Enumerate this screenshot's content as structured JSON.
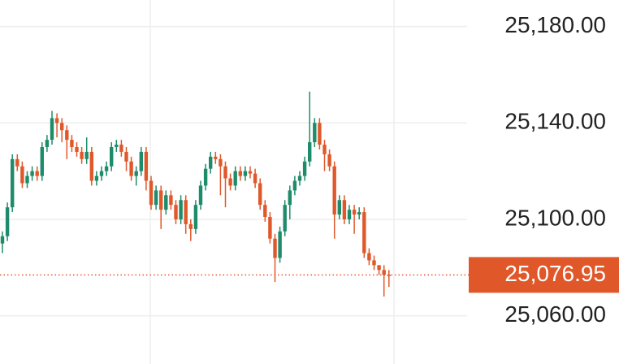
{
  "chart_data": {
    "type": "candlestick",
    "open": [
      25090,
      25093,
      25105,
      25125,
      25122,
      25115,
      25118,
      25120,
      25118,
      25130,
      25133,
      25142,
      25140,
      25137,
      25133,
      25130,
      25128,
      25125,
      25128,
      25116,
      25118,
      25120,
      25122,
      25130,
      25131,
      25128,
      25124,
      25118,
      25120,
      25128,
      25116,
      25106,
      25112,
      25104,
      25110,
      25106,
      25100,
      25108,
      25098,
      25096,
      25106,
      25114,
      25121,
      25126,
      25125,
      25122,
      25117,
      25114,
      25120,
      25118,
      25120,
      25119,
      25115,
      25106,
      25101,
      25092,
      25084,
      25095,
      25106,
      25112,
      25116,
      25118,
      25124,
      25132,
      25140,
      25131,
      25127,
      25122,
      25102,
      25108,
      25100,
      25104,
      25102,
      25103,
      25086,
      25083,
      25081,
      25079,
      25077
    ],
    "high": [
      25095,
      25107,
      25127,
      25127,
      25124,
      25120,
      25122,
      25122,
      25132,
      25135,
      25145,
      25144,
      25142,
      25139,
      25135,
      25132,
      25130,
      25134,
      25130,
      25120,
      25122,
      25124,
      25132,
      25133,
      25133,
      25130,
      25126,
      25122,
      25130,
      25130,
      25118,
      25114,
      25114,
      25112,
      25112,
      25108,
      25110,
      25110,
      25100,
      25108,
      25116,
      25123,
      25128,
      25128,
      25127,
      25124,
      25119,
      25122,
      25122,
      25122,
      25122,
      25121,
      25117,
      25108,
      25103,
      25094,
      25097,
      25108,
      25114,
      25118,
      25120,
      25126,
      25153,
      25142,
      25142,
      25133,
      25129,
      25124,
      25110,
      25110,
      25106,
      25106,
      25105,
      25105,
      25088,
      25085,
      25081,
      25081,
      25079
    ],
    "low": [
      25086,
      25091,
      25103,
      25120,
      25113,
      25113,
      25116,
      25116,
      25116,
      25128,
      25131,
      25134,
      25132,
      25125,
      25128,
      25126,
      25123,
      25123,
      25114,
      25114,
      25116,
      25118,
      25120,
      25128,
      25126,
      25120,
      25116,
      25114,
      25118,
      25112,
      25104,
      25104,
      25096,
      25102,
      25104,
      25098,
      25098,
      25094,
      25091,
      25094,
      25104,
      25112,
      25119,
      25123,
      25110,
      25105,
      25112,
      25112,
      25116,
      25116,
      25117,
      25113,
      25104,
      25099,
      25090,
      25074,
      25082,
      25093,
      25100,
      25110,
      25114,
      25116,
      25122,
      25130,
      25129,
      25120,
      25120,
      25092,
      25100,
      25098,
      25098,
      25094,
      25100,
      25084,
      25081,
      25079,
      25077,
      25068,
      25072
    ],
    "close": [
      25093,
      25105,
      25125,
      25122,
      25115,
      25118,
      25120,
      25118,
      25130,
      25133,
      25142,
      25140,
      25137,
      25133,
      25130,
      25128,
      25125,
      25128,
      25116,
      25118,
      25120,
      25122,
      25130,
      25131,
      25128,
      25124,
      25118,
      25120,
      25128,
      25116,
      25106,
      25112,
      25104,
      25110,
      25106,
      25100,
      25108,
      25098,
      25096,
      25106,
      25114,
      25121,
      25126,
      25125,
      25122,
      25117,
      25114,
      25120,
      25118,
      25120,
      25119,
      25115,
      25106,
      25101,
      25092,
      25084,
      25095,
      25106,
      25112,
      25116,
      25118,
      25124,
      25132,
      25140,
      25131,
      25127,
      25122,
      25102,
      25108,
      25100,
      25104,
      25102,
      25103,
      25086,
      25083,
      25081,
      25079,
      25077,
      25076.95
    ],
    "up_color": "#1e8c6a",
    "down_color": "#e0582a",
    "ylim": [
      25040,
      25191
    ],
    "yticks": [
      {
        "value": 25060,
        "label": "25,060.00"
      },
      {
        "value": 25100,
        "label": "25,100.00"
      },
      {
        "value": 25140,
        "label": "25,140.00"
      },
      {
        "value": 25180,
        "label": "25,180.00"
      }
    ],
    "last_price": {
      "value": 25076.95,
      "label": "25,076.95"
    },
    "grid": true
  }
}
